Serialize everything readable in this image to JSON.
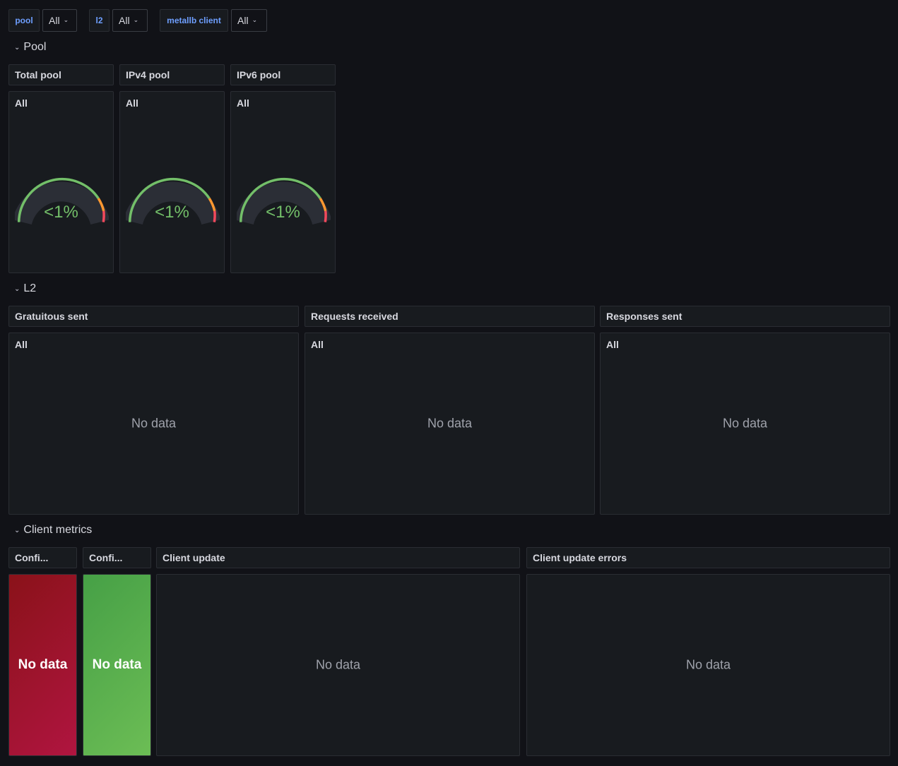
{
  "variables": [
    {
      "name": "pool",
      "value": "All"
    },
    {
      "name": "l2",
      "value": "All"
    },
    {
      "name": "metallb client",
      "value": "All"
    }
  ],
  "rows": {
    "pool": {
      "title": "Pool",
      "panels": [
        {
          "title": "Total pool",
          "legend": "All",
          "value": "<1%"
        },
        {
          "title": "IPv4 pool",
          "legend": "All",
          "value": "<1%"
        },
        {
          "title": "IPv6 pool",
          "legend": "All",
          "value": "<1%"
        }
      ]
    },
    "l2": {
      "title": "L2",
      "panels": [
        {
          "title": "Gratuitous sent",
          "legend": "All",
          "status": "No data"
        },
        {
          "title": "Requests received",
          "legend": "All",
          "status": "No data"
        },
        {
          "title": "Responses sent",
          "legend": "All",
          "status": "No data"
        }
      ]
    },
    "client": {
      "title": "Client metrics",
      "panels": [
        {
          "title": "Confi...",
          "status": "No data",
          "color": "red"
        },
        {
          "title": "Confi...",
          "status": "No data",
          "color": "green"
        },
        {
          "title": "Client update",
          "status": "No data"
        },
        {
          "title": "Client update errors",
          "status": "No data"
        }
      ]
    }
  },
  "icons": {
    "dropdown": "chevron-down-icon",
    "row_collapse": "chevron-down-icon"
  },
  "colors": {
    "background": "#111217",
    "panel": "#181b1f",
    "border": "#2a2d33",
    "variable_label": "#6e9fff",
    "gauge_green": "#73bf69",
    "gauge_orange": "#ff9830",
    "gauge_red": "#f2495c",
    "stat_red": "#a0152a",
    "stat_green": "#56a64b"
  }
}
